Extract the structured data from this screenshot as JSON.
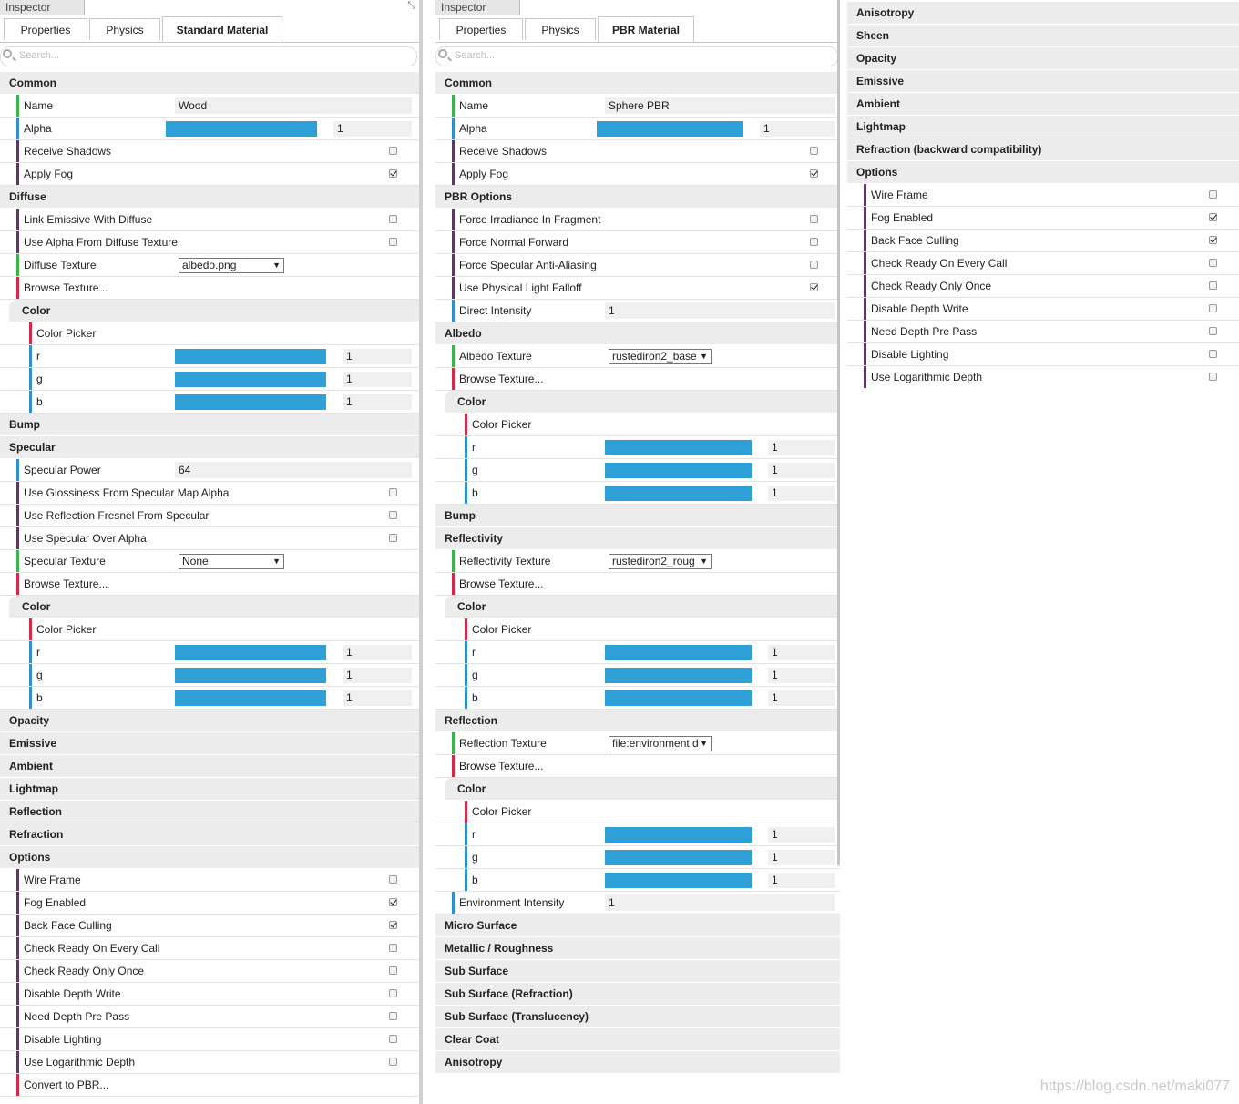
{
  "colors": {
    "green": "#3cb24a",
    "red": "#d62848",
    "blue": "#2f8fcf",
    "purple": "#5a3a5e",
    "slider": "#2f9fd8"
  },
  "panel1": {
    "title": "Inspector",
    "tabs": [
      {
        "label": "Properties"
      },
      {
        "label": "Physics"
      },
      {
        "label": "Standard Material"
      }
    ],
    "search_placeholder": "Search...",
    "rows": [
      {
        "kind": "sec",
        "label": "Common"
      },
      {
        "kind": "text",
        "label": "Name",
        "bar": "green",
        "value": "Wood"
      },
      {
        "kind": "slider",
        "label": "Alpha",
        "bar": "blue",
        "value": "1"
      },
      {
        "kind": "check",
        "label": "Receive Shadows",
        "bar": "purple",
        "checked": false
      },
      {
        "kind": "check",
        "label": "Apply Fog",
        "bar": "purple",
        "checked": true
      },
      {
        "kind": "sec",
        "label": "Diffuse"
      },
      {
        "kind": "check",
        "label": "Link Emissive With Diffuse",
        "bar": "purple",
        "checked": false
      },
      {
        "kind": "check",
        "label": "Use Alpha From Diffuse Texture",
        "bar": "purple",
        "checked": false
      },
      {
        "kind": "select",
        "label": "Diffuse Texture",
        "bar": "green",
        "value": "albedo.png"
      },
      {
        "kind": "plain",
        "label": "Browse Texture...",
        "bar": "red"
      },
      {
        "kind": "subsec",
        "label": "Color"
      },
      {
        "kind": "plain",
        "label": "Color Picker",
        "bar": "red",
        "indent": true
      },
      {
        "kind": "slider",
        "label": "r",
        "bar": "blue",
        "value": "1",
        "indent": true
      },
      {
        "kind": "slider",
        "label": "g",
        "bar": "blue",
        "value": "1",
        "indent": true
      },
      {
        "kind": "slider",
        "label": "b",
        "bar": "blue",
        "value": "1",
        "indent": true
      },
      {
        "kind": "sec",
        "label": "Bump"
      },
      {
        "kind": "sec",
        "label": "Specular"
      },
      {
        "kind": "text",
        "label": "Specular Power",
        "bar": "blue",
        "value": "64"
      },
      {
        "kind": "check",
        "label": "Use Glossiness From Specular Map Alpha",
        "bar": "purple",
        "checked": false
      },
      {
        "kind": "check",
        "label": "Use Reflection Fresnel From Specular",
        "bar": "purple",
        "checked": false
      },
      {
        "kind": "check",
        "label": "Use Specular Over Alpha",
        "bar": "purple",
        "checked": false
      },
      {
        "kind": "select",
        "label": "Specular Texture",
        "bar": "green",
        "value": "None"
      },
      {
        "kind": "plain",
        "label": "Browse Texture...",
        "bar": "red"
      },
      {
        "kind": "subsec",
        "label": "Color"
      },
      {
        "kind": "plain",
        "label": "Color Picker",
        "bar": "red",
        "indent": true
      },
      {
        "kind": "slider",
        "label": "r",
        "bar": "blue",
        "value": "1",
        "indent": true
      },
      {
        "kind": "slider",
        "label": "g",
        "bar": "blue",
        "value": "1",
        "indent": true
      },
      {
        "kind": "slider",
        "label": "b",
        "bar": "blue",
        "value": "1",
        "indent": true
      },
      {
        "kind": "sec",
        "label": "Opacity"
      },
      {
        "kind": "sec",
        "label": "Emissive"
      },
      {
        "kind": "sec",
        "label": "Ambient"
      },
      {
        "kind": "sec",
        "label": "Lightmap"
      },
      {
        "kind": "sec",
        "label": "Reflection"
      },
      {
        "kind": "sec",
        "label": "Refraction"
      },
      {
        "kind": "sec",
        "label": "Options"
      },
      {
        "kind": "check",
        "label": "Wire Frame",
        "bar": "purple",
        "checked": false
      },
      {
        "kind": "check",
        "label": "Fog Enabled",
        "bar": "purple",
        "checked": true
      },
      {
        "kind": "check",
        "label": "Back Face Culling",
        "bar": "purple",
        "checked": true
      },
      {
        "kind": "check",
        "label": "Check Ready On Every Call",
        "bar": "purple",
        "checked": false
      },
      {
        "kind": "check",
        "label": "Check Ready Only Once",
        "bar": "purple",
        "checked": false
      },
      {
        "kind": "check",
        "label": "Disable Depth Write",
        "bar": "purple",
        "checked": false
      },
      {
        "kind": "check",
        "label": "Need Depth Pre Pass",
        "bar": "purple",
        "checked": false
      },
      {
        "kind": "check",
        "label": "Disable Lighting",
        "bar": "purple",
        "checked": false
      },
      {
        "kind": "check",
        "label": "Use Logarithmic Depth",
        "bar": "purple",
        "checked": false
      },
      {
        "kind": "plain",
        "label": "Convert to PBR...",
        "bar": "red"
      }
    ]
  },
  "panel2": {
    "title": "Inspector",
    "tabs": [
      {
        "label": "Properties"
      },
      {
        "label": "Physics"
      },
      {
        "label": "PBR Material"
      }
    ],
    "search_placeholder": "Search...",
    "rows": [
      {
        "kind": "sec",
        "label": "Common"
      },
      {
        "kind": "text",
        "label": "Name",
        "bar": "green",
        "value": "Sphere PBR"
      },
      {
        "kind": "slider",
        "label": "Alpha",
        "bar": "blue",
        "value": "1"
      },
      {
        "kind": "check",
        "label": "Receive Shadows",
        "bar": "purple",
        "checked": false
      },
      {
        "kind": "check",
        "label": "Apply Fog",
        "bar": "purple",
        "checked": true
      },
      {
        "kind": "sec",
        "label": "PBR Options"
      },
      {
        "kind": "check",
        "label": "Force Irradiance In Fragment",
        "bar": "purple",
        "checked": false
      },
      {
        "kind": "check",
        "label": "Force Normal Forward",
        "bar": "purple",
        "checked": false
      },
      {
        "kind": "check",
        "label": "Force Specular Anti-Aliasing",
        "bar": "purple",
        "checked": false
      },
      {
        "kind": "check",
        "label": "Use Physical Light Falloff",
        "bar": "purple",
        "checked": true
      },
      {
        "kind": "text",
        "label": "Direct Intensity",
        "bar": "blue",
        "value": "1"
      },
      {
        "kind": "sec",
        "label": "Albedo"
      },
      {
        "kind": "select",
        "label": "Albedo Texture",
        "bar": "green",
        "value": "rustediron2_base"
      },
      {
        "kind": "plain",
        "label": "Browse Texture...",
        "bar": "red"
      },
      {
        "kind": "subsec",
        "label": "Color"
      },
      {
        "kind": "plain",
        "label": "Color Picker",
        "bar": "red",
        "indent": true
      },
      {
        "kind": "slider",
        "label": "r",
        "bar": "blue",
        "value": "1",
        "indent": true
      },
      {
        "kind": "slider",
        "label": "g",
        "bar": "blue",
        "value": "1",
        "indent": true
      },
      {
        "kind": "slider",
        "label": "b",
        "bar": "blue",
        "value": "1",
        "indent": true
      },
      {
        "kind": "sec",
        "label": "Bump"
      },
      {
        "kind": "sec",
        "label": "Reflectivity"
      },
      {
        "kind": "select",
        "label": "Reflectivity Texture",
        "bar": "green",
        "value": "rustediron2_roug"
      },
      {
        "kind": "plain",
        "label": "Browse Texture...",
        "bar": "red"
      },
      {
        "kind": "subsec",
        "label": "Color"
      },
      {
        "kind": "plain",
        "label": "Color Picker",
        "bar": "red",
        "indent": true
      },
      {
        "kind": "slider",
        "label": "r",
        "bar": "blue",
        "value": "1",
        "indent": true
      },
      {
        "kind": "slider",
        "label": "g",
        "bar": "blue",
        "value": "1",
        "indent": true
      },
      {
        "kind": "slider",
        "label": "b",
        "bar": "blue",
        "value": "1",
        "indent": true
      },
      {
        "kind": "sec",
        "label": "Reflection"
      },
      {
        "kind": "select",
        "label": "Reflection Texture",
        "bar": "green",
        "value": "file:environment.d"
      },
      {
        "kind": "plain",
        "label": "Browse Texture...",
        "bar": "red"
      },
      {
        "kind": "subsec",
        "label": "Color"
      },
      {
        "kind": "plain",
        "label": "Color Picker",
        "bar": "red",
        "indent": true
      },
      {
        "kind": "slider",
        "label": "r",
        "bar": "blue",
        "value": "1",
        "indent": true
      },
      {
        "kind": "slider",
        "label": "g",
        "bar": "blue",
        "value": "1",
        "indent": true
      },
      {
        "kind": "slider",
        "label": "b",
        "bar": "blue",
        "value": "1",
        "indent": true
      },
      {
        "kind": "text",
        "label": "Environment Intensity",
        "bar": "blue",
        "value": "1"
      },
      {
        "kind": "sec",
        "label": "Micro Surface"
      },
      {
        "kind": "sec",
        "label": "Metallic / Roughness"
      },
      {
        "kind": "sec",
        "label": "Sub Surface"
      },
      {
        "kind": "sec",
        "label": "Sub Surface (Refraction)"
      },
      {
        "kind": "sec",
        "label": "Sub Surface (Translucency)"
      },
      {
        "kind": "sec",
        "label": "Clear Coat"
      },
      {
        "kind": "sec",
        "label": "Anisotropy"
      }
    ]
  },
  "panel3": {
    "rows": [
      {
        "kind": "sec",
        "label": "Anisotropy"
      },
      {
        "kind": "sec",
        "label": "Sheen"
      },
      {
        "kind": "sec",
        "label": "Opacity"
      },
      {
        "kind": "sec",
        "label": "Emissive"
      },
      {
        "kind": "sec",
        "label": "Ambient"
      },
      {
        "kind": "sec",
        "label": "Lightmap"
      },
      {
        "kind": "sec",
        "label": "Refraction (backward compatibility)"
      },
      {
        "kind": "sec",
        "label": "Options"
      },
      {
        "kind": "check",
        "label": "Wire Frame",
        "bar": "purple",
        "checked": false
      },
      {
        "kind": "check",
        "label": "Fog Enabled",
        "bar": "purple",
        "checked": true
      },
      {
        "kind": "check",
        "label": "Back Face Culling",
        "bar": "purple",
        "checked": true
      },
      {
        "kind": "check",
        "label": "Check Ready On Every Call",
        "bar": "purple",
        "checked": false
      },
      {
        "kind": "check",
        "label": "Check Ready Only Once",
        "bar": "purple",
        "checked": false
      },
      {
        "kind": "check",
        "label": "Disable Depth Write",
        "bar": "purple",
        "checked": false
      },
      {
        "kind": "check",
        "label": "Need Depth Pre Pass",
        "bar": "purple",
        "checked": false
      },
      {
        "kind": "check",
        "label": "Disable Lighting",
        "bar": "purple",
        "checked": false
      },
      {
        "kind": "check",
        "label": "Use Logarithmic Depth",
        "bar": "purple",
        "checked": false
      }
    ]
  },
  "watermark": "https://blog.csdn.net/maki077"
}
